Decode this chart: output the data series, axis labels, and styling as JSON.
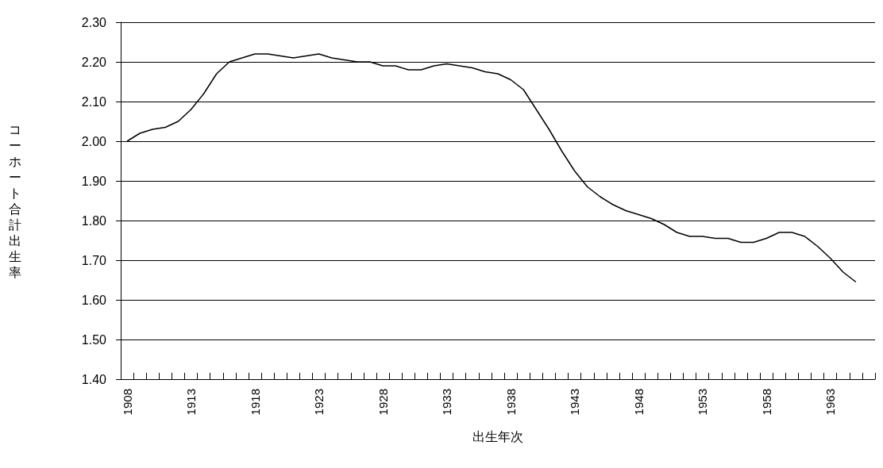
{
  "chart_data": {
    "type": "line",
    "xlabel": "出生年次",
    "ylabel": "コーホート合計出生率",
    "categories": [
      "1908",
      null,
      null,
      null,
      null,
      "1913",
      null,
      null,
      null,
      null,
      "1918",
      null,
      null,
      null,
      null,
      "1923",
      null,
      null,
      null,
      null,
      "1928",
      null,
      null,
      null,
      null,
      "1933",
      null,
      null,
      null,
      null,
      "1938",
      null,
      null,
      null,
      null,
      "1943",
      null,
      null,
      null,
      null,
      "1948",
      null,
      null,
      null,
      null,
      "1953",
      null,
      null,
      null,
      null,
      "1958",
      null,
      null,
      null,
      null,
      "1963",
      null,
      null,
      null
    ],
    "series": [
      {
        "color": "#000000",
        "values": [
          2.0,
          2.02,
          2.03,
          2.035,
          2.05,
          2.08,
          2.12,
          2.17,
          2.2,
          2.21,
          2.22,
          2.22,
          2.215,
          2.21,
          2.215,
          2.22,
          2.21,
          2.205,
          2.2,
          2.2,
          2.19,
          2.19,
          2.18,
          2.18,
          2.19,
          2.195,
          2.19,
          2.185,
          2.175,
          2.17,
          2.155,
          2.13,
          2.08,
          2.03,
          1.975,
          1.925,
          1.885,
          1.86,
          1.84,
          1.825,
          1.815,
          1.805,
          1.79,
          1.77,
          1.76,
          1.76,
          1.755,
          1.755,
          1.745,
          1.745,
          1.755,
          1.77,
          1.77,
          1.76,
          1.735,
          1.705,
          1.67,
          1.645,
          null
        ]
      }
    ],
    "ylim": [
      1.4,
      2.3
    ],
    "yticks": [
      {
        "value": 1.4,
        "label": "1.40"
      },
      {
        "value": 1.5,
        "label": "1.50"
      },
      {
        "value": 1.6,
        "label": "1.60"
      },
      {
        "value": 1.7,
        "label": "1.70"
      },
      {
        "value": 1.8,
        "label": "1.80"
      },
      {
        "value": 1.9,
        "label": "1.90"
      },
      {
        "value": 2.0,
        "label": "2.00"
      },
      {
        "value": 2.1,
        "label": "2.10"
      },
      {
        "value": 2.2,
        "label": "2.20"
      },
      {
        "value": 2.3,
        "label": "2.30"
      }
    ],
    "grid": "y",
    "marker": "none",
    "line_style": "solid"
  }
}
